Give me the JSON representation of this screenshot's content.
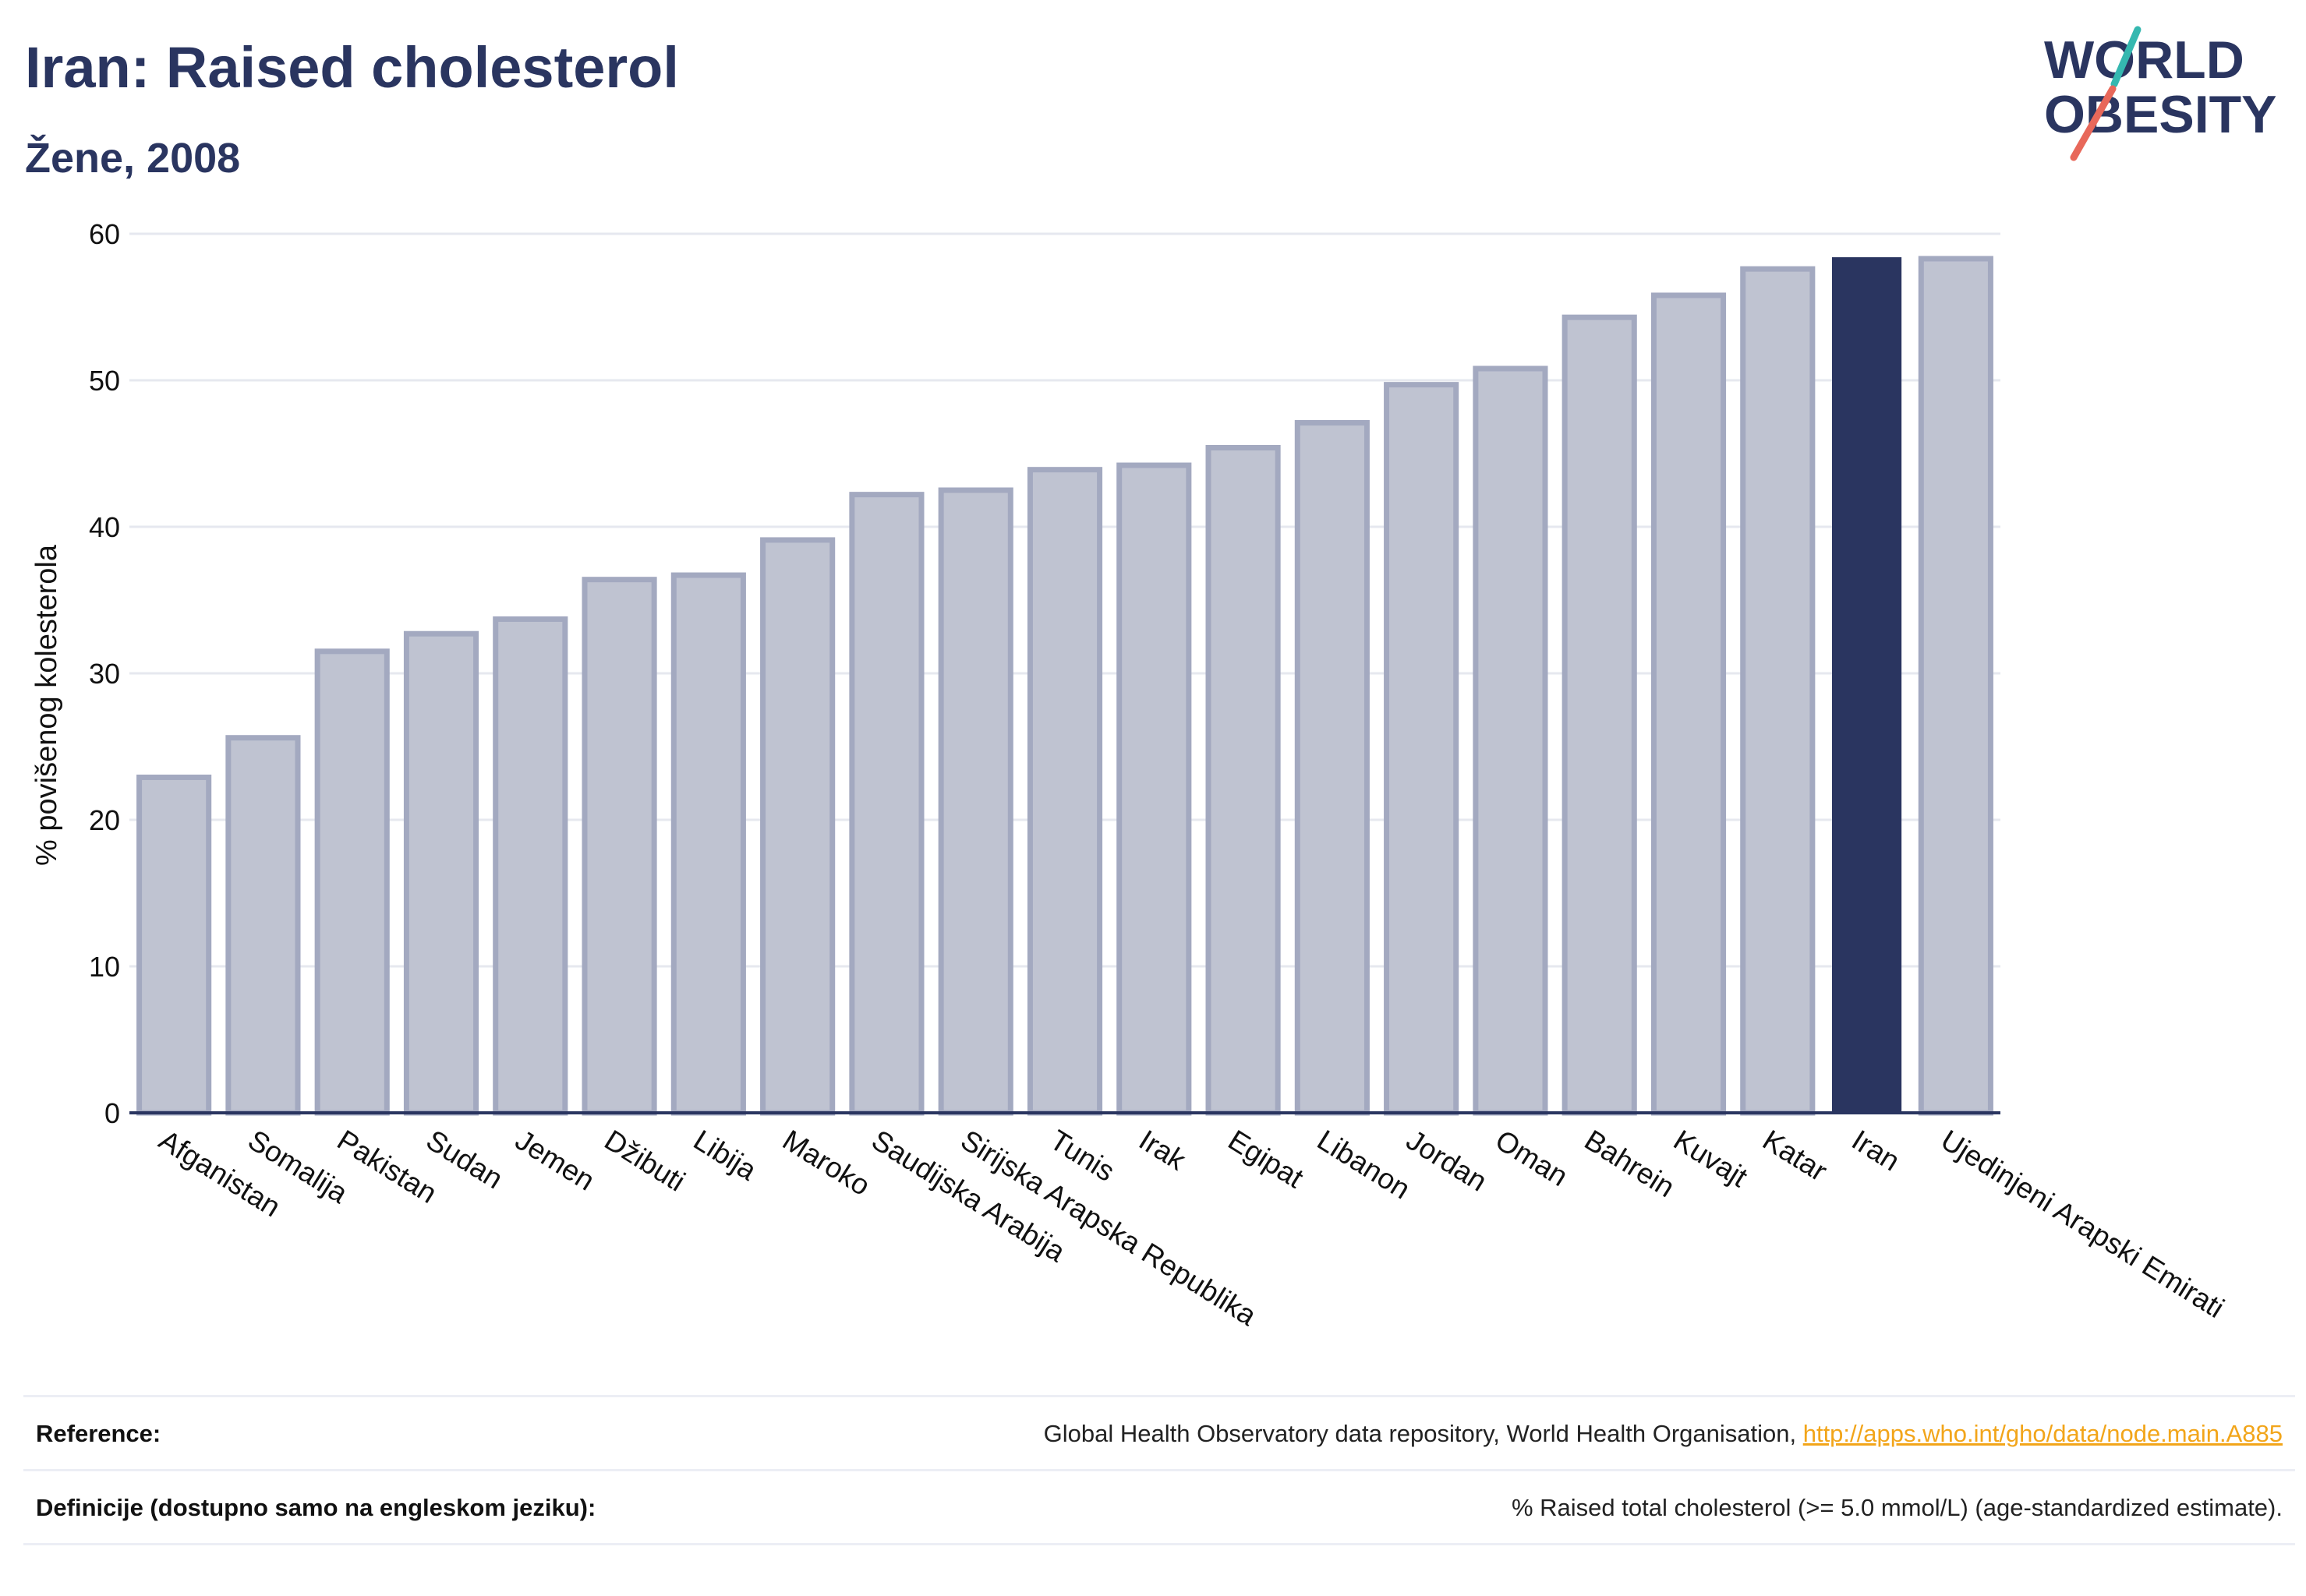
{
  "header": {
    "title": "Iran: Raised cholesterol",
    "subtitle": "Žene, 2008"
  },
  "logo": {
    "line1": "WORLD",
    "line2": "OBESITY",
    "accent_teal": "#35b8b0",
    "accent_red": "#e8685a",
    "text_color": "#2a3560"
  },
  "colors": {
    "bar_default": "#bfc3d1",
    "bar_border": "#a3a9c0",
    "bar_highlight": "#2a3560",
    "grid": "#e6e8ef",
    "axis": "#2a3560"
  },
  "chart_data": {
    "type": "bar",
    "title": "Iran: Raised cholesterol",
    "subtitle": "Žene, 2008",
    "ylabel": "% povišenog kolesterola",
    "xlabel": "",
    "ylim": [
      0,
      60
    ],
    "yticks": [
      0,
      10,
      20,
      30,
      40,
      50,
      60
    ],
    "grid": true,
    "highlight": "Iran",
    "categories": [
      "Afganistan",
      "Somalija",
      "Pakistan",
      "Sudan",
      "Jemen",
      "Džibuti",
      "Libija",
      "Maroko",
      "Saudijska Arabija",
      "Sirijska Arapska Republika",
      "Tunis",
      "Irak",
      "Egipat",
      "Libanon",
      "Jordan",
      "Oman",
      "Bahrein",
      "Kuvajt",
      "Katar",
      "Iran",
      "Ujedinjeni Arapski Emirati"
    ],
    "values": [
      22.9,
      25.6,
      31.5,
      32.7,
      33.7,
      36.4,
      36.7,
      39.1,
      42.2,
      42.5,
      43.9,
      44.2,
      45.4,
      47.1,
      49.7,
      50.8,
      54.3,
      55.8,
      57.6,
      58.4,
      58.3
    ]
  },
  "reference": {
    "label": "Reference:",
    "text": "Global Health Observatory data repository, World Health Organisation, ",
    "link": "http://apps.who.int/gho/data/node.main.A885"
  },
  "definition": {
    "label": "Definicije (dostupno samo na engleskom jeziku):",
    "text": "% Raised total cholesterol (>= 5.0 mmol/L) (age-standardized estimate)."
  }
}
